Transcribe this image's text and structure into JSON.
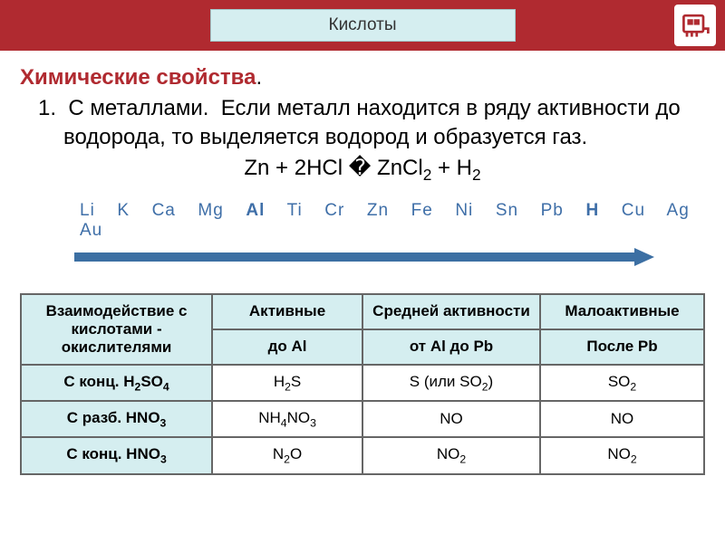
{
  "header": {
    "title": "Кислоты"
  },
  "subtitle": "Химические свойства",
  "point_number": "1.",
  "point_text": "С металлами.  Если металл находится в ряду активности до водорода, то выделяется водород и образуется газ.",
  "equation": {
    "pre": "Zn + 2HCl ",
    "arrow": "�",
    "post": " ZnCl",
    "sub1": "2",
    "mid": " + H",
    "sub2": "2"
  },
  "activity_series": {
    "elements_html": "Li  K  Ca  Mg  <b>Al</b>  Ti  Cr  Zn  Fe  Ni  Sn  Pb  <b>H</b>  Cu  Ag  Au",
    "arrow_color": "#2a5b8e",
    "arrow_fill": "#3c6fa3"
  },
  "table": {
    "headers": [
      "Взаимодействие с кислотами - окислителями",
      "Активные",
      "Средней активности",
      "Малоактивные"
    ],
    "subheaders": [
      "",
      "до Al",
      "от Al до Pb",
      "После Pb"
    ],
    "rows": [
      {
        "label_html": "С конц. H<sub>2</sub>SO<sub>4</sub>",
        "cells_html": [
          "H<sub>2</sub>S",
          "S (или SO<sub>2</sub>)",
          "SO<sub>2</sub>"
        ]
      },
      {
        "label_html": "С разб. HNO<sub>3</sub>",
        "cells_html": [
          "NH<sub>4</sub>NO<sub>3</sub>",
          "NO",
          "NO"
        ]
      },
      {
        "label_html": "С конц. HNO<sub>3</sub>",
        "cells_html": [
          "N<sub>2</sub>O",
          "NO<sub>2</sub>",
          "NO<sub>2</sub>"
        ]
      }
    ]
  },
  "colors": {
    "header_bar": "#b02a30",
    "title_bg": "#d5eef0",
    "table_header_bg": "#d5eef0",
    "border": "#666666",
    "element_text": "#3f6fa8"
  }
}
